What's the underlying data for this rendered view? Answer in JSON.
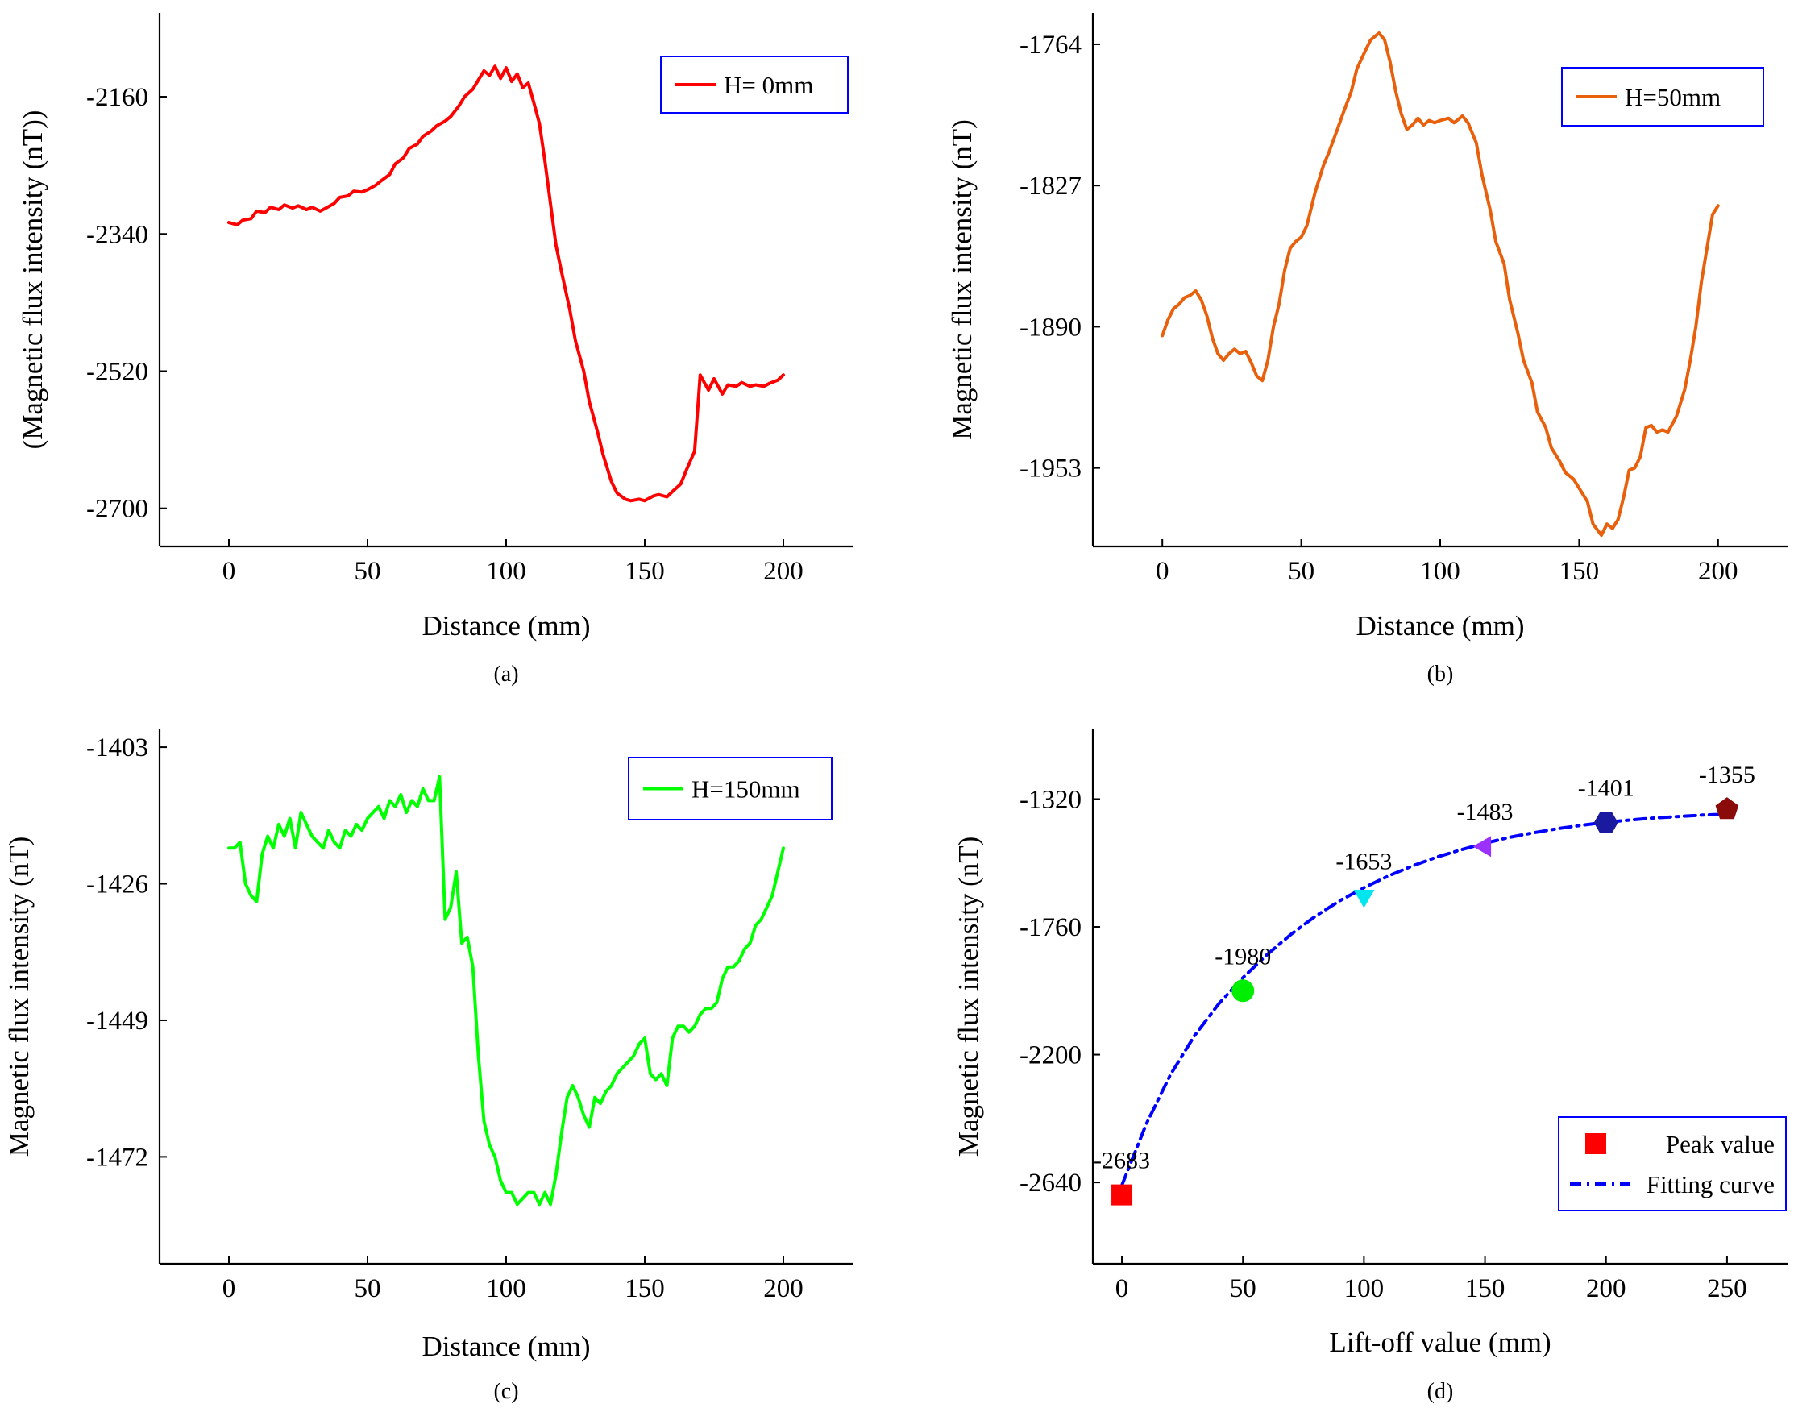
{
  "chart_data": [
    {
      "id": "a",
      "type": "line",
      "caption": "(a)",
      "xlabel": "Distance (mm)",
      "ylabel": "(Magnetic flux intensity (nT))",
      "xlim": [
        -25,
        225
      ],
      "ylim": [
        -2750,
        -2050
      ],
      "xticks": [
        0,
        50,
        100,
        150,
        200
      ],
      "yticks": [
        -2160,
        -2340,
        -2520,
        -2700
      ],
      "legend_position": "top-right",
      "series": [
        {
          "name": "H= 0mm",
          "color": "#ff0000",
          "x": [
            0,
            3,
            5,
            8,
            10,
            13,
            15,
            18,
            20,
            23,
            25,
            28,
            30,
            33,
            35,
            38,
            40,
            43,
            45,
            48,
            50,
            53,
            55,
            58,
            60,
            63,
            65,
            68,
            70,
            73,
            75,
            78,
            80,
            83,
            85,
            88,
            90,
            92,
            94,
            96,
            98,
            100,
            102,
            104,
            106,
            108,
            110,
            112,
            114,
            116,
            118,
            120,
            123,
            125,
            128,
            130,
            133,
            135,
            138,
            140,
            143,
            145,
            148,
            150,
            153,
            155,
            158,
            160,
            163,
            165,
            168,
            170,
            173,
            175,
            178,
            180,
            183,
            185,
            188,
            190,
            193,
            195,
            198,
            200
          ],
          "values": [
            -2325,
            -2328,
            -2322,
            -2320,
            -2310,
            -2312,
            -2305,
            -2308,
            -2302,
            -2306,
            -2303,
            -2308,
            -2305,
            -2310,
            -2306,
            -2300,
            -2292,
            -2290,
            -2284,
            -2285,
            -2282,
            -2276,
            -2270,
            -2262,
            -2248,
            -2240,
            -2228,
            -2222,
            -2212,
            -2205,
            -2198,
            -2192,
            -2186,
            -2172,
            -2160,
            -2150,
            -2138,
            -2126,
            -2132,
            -2120,
            -2136,
            -2122,
            -2140,
            -2130,
            -2148,
            -2142,
            -2168,
            -2195,
            -2245,
            -2300,
            -2355,
            -2390,
            -2440,
            -2480,
            -2520,
            -2560,
            -2600,
            -2630,
            -2665,
            -2680,
            -2688,
            -2690,
            -2688,
            -2690,
            -2684,
            -2682,
            -2685,
            -2678,
            -2668,
            -2650,
            -2625,
            -2525,
            -2545,
            -2530,
            -2550,
            -2538,
            -2540,
            -2535,
            -2540,
            -2538,
            -2540,
            -2536,
            -2532,
            -2525
          ]
        }
      ]
    },
    {
      "id": "b",
      "type": "line",
      "caption": "(b)",
      "xlabel": "Distance (mm)",
      "ylabel": "Magnetic flux intensity (nT)",
      "xlim": [
        -25,
        225
      ],
      "ylim": [
        -1988,
        -1750
      ],
      "xticks": [
        0,
        50,
        100,
        150,
        200
      ],
      "yticks": [
        -1764,
        -1827,
        -1890,
        -1953
      ],
      "legend_position": "top-right",
      "series": [
        {
          "name": "H=50mm",
          "color": "#e8600c",
          "x": [
            0,
            2,
            4,
            6,
            8,
            10,
            12,
            14,
            16,
            18,
            20,
            22,
            24,
            26,
            28,
            30,
            32,
            34,
            36,
            38,
            40,
            42,
            44,
            46,
            48,
            50,
            52,
            55,
            58,
            60,
            63,
            65,
            68,
            70,
            73,
            75,
            78,
            80,
            82,
            84,
            86,
            88,
            90,
            92,
            94,
            96,
            98,
            100,
            103,
            105,
            108,
            110,
            113,
            115,
            118,
            120,
            123,
            125,
            128,
            130,
            133,
            135,
            138,
            140,
            143,
            145,
            148,
            150,
            153,
            155,
            158,
            160,
            162,
            164,
            166,
            168,
            170,
            172,
            174,
            176,
            178,
            180,
            182,
            185,
            188,
            190,
            192,
            194,
            196,
            198,
            200
          ],
          "values": [
            -1894,
            -1887,
            -1882,
            -1880,
            -1877,
            -1876,
            -1874,
            -1878,
            -1885,
            -1895,
            -1902,
            -1905,
            -1902,
            -1900,
            -1902,
            -1901,
            -1906,
            -1912,
            -1914,
            -1905,
            -1890,
            -1880,
            -1865,
            -1855,
            -1852,
            -1850,
            -1845,
            -1830,
            -1818,
            -1812,
            -1802,
            -1795,
            -1785,
            -1775,
            -1767,
            -1762,
            -1759,
            -1762,
            -1772,
            -1785,
            -1795,
            -1802,
            -1800,
            -1797,
            -1800,
            -1798,
            -1799,
            -1798,
            -1797,
            -1799,
            -1796,
            -1799,
            -1808,
            -1822,
            -1838,
            -1852,
            -1862,
            -1878,
            -1893,
            -1905,
            -1915,
            -1928,
            -1935,
            -1944,
            -1950,
            -1955,
            -1958,
            -1962,
            -1968,
            -1978,
            -1983,
            -1978,
            -1980,
            -1976,
            -1966,
            -1954,
            -1953,
            -1948,
            -1935,
            -1934,
            -1937,
            -1936,
            -1937,
            -1930,
            -1918,
            -1905,
            -1890,
            -1870,
            -1855,
            -1840,
            -1836
          ]
        }
      ]
    },
    {
      "id": "c",
      "type": "line",
      "caption": "(c)",
      "xlabel": "Distance (mm)",
      "ylabel": "Magnetic flux intensity (nT)",
      "xlim": [
        -25,
        225
      ],
      "ylim": [
        -1490,
        -1400
      ],
      "xticks": [
        0,
        50,
        100,
        150,
        200
      ],
      "yticks": [
        -1403,
        -1426,
        -1449,
        -1472
      ],
      "legend_position": "top-right",
      "series": [
        {
          "name": "H=150mm",
          "color": "#00ff00",
          "x": [
            0,
            2,
            4,
            6,
            8,
            10,
            12,
            14,
            16,
            18,
            20,
            22,
            24,
            26,
            28,
            30,
            32,
            34,
            36,
            38,
            40,
            42,
            44,
            46,
            48,
            50,
            52,
            54,
            56,
            58,
            60,
            62,
            64,
            66,
            68,
            70,
            72,
            74,
            76,
            78,
            80,
            82,
            84,
            86,
            88,
            90,
            92,
            94,
            96,
            98,
            100,
            102,
            104,
            106,
            108,
            110,
            112,
            114,
            116,
            118,
            120,
            122,
            124,
            126,
            128,
            130,
            132,
            134,
            136,
            138,
            140,
            142,
            144,
            146,
            148,
            150,
            152,
            154,
            156,
            158,
            160,
            162,
            164,
            166,
            168,
            170,
            172,
            174,
            176,
            178,
            180,
            182,
            184,
            186,
            188,
            190,
            192,
            194,
            196,
            198,
            200
          ],
          "values": [
            -1420,
            -1420,
            -1419,
            -1426,
            -1428,
            -1429,
            -1421,
            -1418,
            -1420,
            -1416,
            -1418,
            -1415,
            -1420,
            -1414,
            -1416,
            -1418,
            -1419,
            -1420,
            -1417,
            -1419,
            -1420,
            -1417,
            -1418,
            -1416,
            -1417,
            -1415,
            -1414,
            -1413,
            -1415,
            -1412,
            -1413,
            -1411,
            -1414,
            -1412,
            -1413,
            -1410,
            -1412,
            -1412,
            -1408,
            -1432,
            -1430,
            -1424,
            -1436,
            -1435,
            -1440,
            -1455,
            -1466,
            -1470,
            -1472,
            -1476,
            -1478,
            -1478,
            -1480,
            -1479,
            -1478,
            -1478,
            -1480,
            -1478,
            -1480,
            -1475,
            -1468,
            -1462,
            -1460,
            -1462,
            -1465,
            -1467,
            -1462,
            -1463,
            -1461,
            -1460,
            -1458,
            -1457,
            -1456,
            -1455,
            -1453,
            -1452,
            -1458,
            -1459,
            -1458,
            -1460,
            -1452,
            -1450,
            -1450,
            -1451,
            -1450,
            -1448,
            -1447,
            -1447,
            -1446,
            -1442,
            -1440,
            -1440,
            -1439,
            -1437,
            -1436,
            -1433,
            -1432,
            -1430,
            -1428,
            -1424,
            -1420
          ]
        }
      ]
    },
    {
      "id": "d",
      "type": "scatter",
      "caption": "(d)",
      "xlabel": "Lift-off value (mm)",
      "ylabel": "Magnetic flux intensity (nT)",
      "xlim": [
        -12,
        275
      ],
      "ylim": [
        -2920,
        -1080
      ],
      "xticks": [
        0,
        50,
        100,
        150,
        200,
        250
      ],
      "yticks": [
        -1320,
        -1760,
        -2200,
        -2640
      ],
      "legend_position": "bottom-right",
      "points": [
        {
          "x": 0,
          "y": -2683,
          "label": "-2683",
          "marker": "square",
          "color": "#ff0000"
        },
        {
          "x": 50,
          "y": -1980,
          "label": "-1980",
          "marker": "circle",
          "color": "#00ee00"
        },
        {
          "x": 100,
          "y": -1653,
          "label": "-1653",
          "marker": "triangle-down",
          "color": "#00e5ee"
        },
        {
          "x": 150,
          "y": -1483,
          "label": "-1483",
          "marker": "triangle-left",
          "color": "#9b30ff"
        },
        {
          "x": 200,
          "y": -1401,
          "label": "-1401",
          "marker": "hexagon",
          "color": "#1a1aa0"
        },
        {
          "x": 250,
          "y": -1355,
          "label": "-1355",
          "marker": "pentagon",
          "color": "#8b0a0a"
        }
      ],
      "fit": {
        "name": "Fitting curve",
        "color": "#0000ff",
        "x": [
          0,
          10,
          20,
          30,
          40,
          50,
          60,
          70,
          80,
          90,
          100,
          110,
          120,
          130,
          140,
          150,
          160,
          170,
          180,
          190,
          200,
          210,
          220,
          230,
          240,
          250
        ],
        "values": [
          -2650,
          -2440,
          -2270,
          -2135,
          -2025,
          -1935,
          -1855,
          -1785,
          -1723,
          -1670,
          -1625,
          -1585,
          -1550,
          -1520,
          -1495,
          -1472,
          -1452,
          -1436,
          -1422,
          -1410,
          -1400,
          -1392,
          -1385,
          -1380,
          -1375,
          -1372
        ]
      },
      "legend": [
        "Peak value",
        "Fitting curve"
      ]
    }
  ]
}
